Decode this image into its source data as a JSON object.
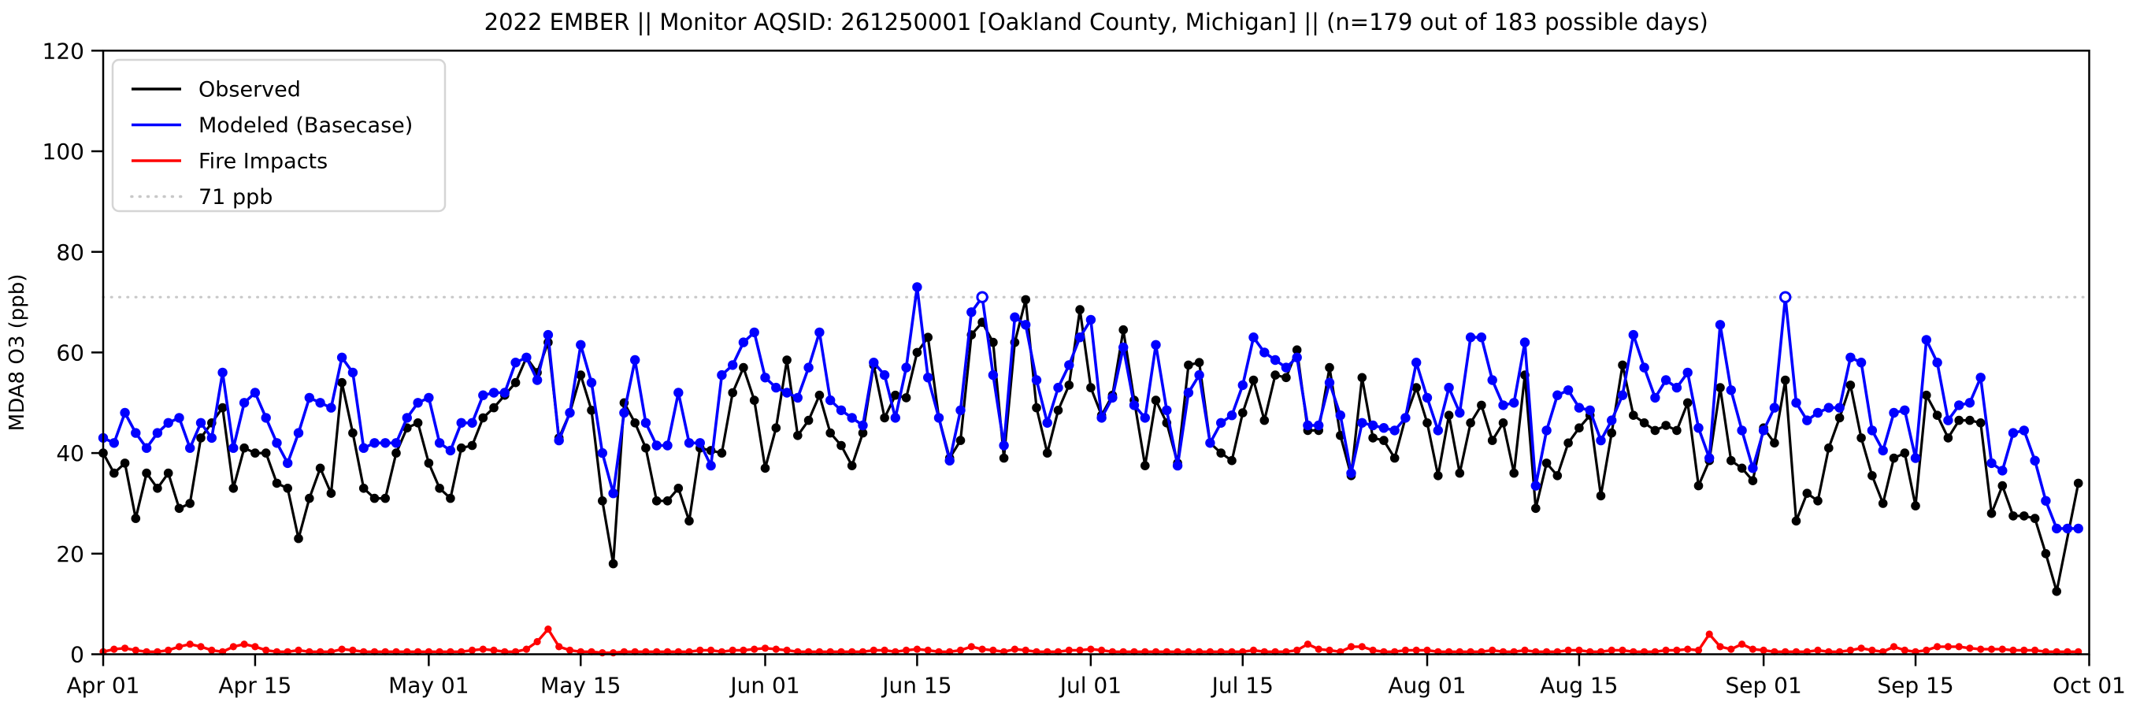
{
  "title": "2022 EMBER || Monitor AQSID: 261250001 [Oakland County, Michigan] || (n=179 out of 183 possible days)",
  "legend": {
    "items": [
      {
        "label": "Observed",
        "color": "#000000",
        "style": "solid"
      },
      {
        "label": "Modeled (Basecase)",
        "color": "#0000ff",
        "style": "solid"
      },
      {
        "label": "Fire Impacts",
        "color": "#ff0000",
        "style": "solid"
      },
      {
        "label": "71 ppb",
        "color": "#c8c8c8",
        "style": "dotted"
      }
    ]
  },
  "chart_data": {
    "type": "line",
    "title": "2022 EMBER || Monitor AQSID: 261250001 [Oakland County, Michigan] || (n=179 out of 183 possible days)",
    "xlabel": "",
    "ylabel": "MDA8 O3 (ppb)",
    "ylim": [
      0,
      120
    ],
    "yticks": [
      0,
      20,
      40,
      60,
      80,
      100,
      120
    ],
    "n_days": 183,
    "start_date": "Apr 01",
    "end_date": "Oct 01",
    "threshold_ppb": 71,
    "threshold_color": "#c8c8c8",
    "grid": false,
    "legend_position": "upper-left",
    "x_ticks": [
      {
        "label": "Apr 01",
        "day": 0
      },
      {
        "label": "Apr 15",
        "day": 14
      },
      {
        "label": "May 01",
        "day": 30
      },
      {
        "label": "May 15",
        "day": 44
      },
      {
        "label": "Jun 01",
        "day": 61
      },
      {
        "label": "Jun 15",
        "day": 75
      },
      {
        "label": "Jul 01",
        "day": 91
      },
      {
        "label": "Jul 15",
        "day": 105
      },
      {
        "label": "Aug 01",
        "day": 122
      },
      {
        "label": "Aug 15",
        "day": 136
      },
      {
        "label": "Sep 01",
        "day": 153
      },
      {
        "label": "Sep 15",
        "day": 167
      },
      {
        "label": "Oct 01",
        "day": 183
      }
    ],
    "series": [
      {
        "name": "Observed",
        "color": "#000000",
        "marker_radius": 5.8,
        "line_width": 3.2,
        "values": [
          40,
          36,
          38,
          27,
          36,
          33,
          36,
          29,
          30,
          43,
          46,
          49,
          33,
          41,
          40,
          40,
          34,
          33,
          23,
          31,
          37,
          32,
          54,
          44,
          33,
          31,
          31,
          40,
          45,
          46,
          38,
          33,
          31,
          41,
          41.5,
          47,
          49,
          51.5,
          54,
          59,
          56,
          62,
          43,
          48,
          55.5,
          48.5,
          30.5,
          18,
          50,
          46,
          41,
          30.5,
          30.5,
          33,
          26.5,
          41,
          40.5,
          40,
          52,
          57,
          50.5,
          37,
          45,
          58.5,
          43.5,
          46.5,
          51.5,
          44,
          41.5,
          37.5,
          44,
          57.5,
          47,
          51.5,
          51,
          60,
          63,
          47,
          39,
          42.5,
          63.5,
          66,
          62,
          39,
          62,
          70.5,
          49,
          40,
          48.5,
          53.5,
          68.5,
          53,
          47.5,
          51.5,
          64.5,
          50.5,
          37.5,
          50.5,
          46,
          38,
          57.5,
          58,
          42,
          40,
          38.5,
          48,
          54.5,
          46.5,
          55.5,
          55,
          60.5,
          44.5,
          44.5,
          57,
          43.5,
          35.5,
          55,
          43,
          42.5,
          39,
          47,
          53,
          46,
          35.5,
          47.5,
          36,
          46,
          49.5,
          42.5,
          46,
          36,
          55.5,
          29,
          38,
          35.5,
          42,
          45,
          47.5,
          31.5,
          44,
          57.5,
          47.5,
          46,
          44.5,
          45.5,
          44.5,
          50,
          33.5,
          38.5,
          53,
          38.5,
          37,
          34.5,
          45,
          42,
          54.5,
          26.5,
          32,
          30.5,
          41,
          47,
          53.5,
          43,
          35.5,
          30,
          39,
          40,
          29.5,
          51.5,
          47.5,
          43,
          46.5,
          46.5,
          46,
          28,
          33.5,
          27.5,
          27.5,
          27,
          20,
          12.5,
          null,
          34
        ]
      },
      {
        "name": "Modeled (Basecase)",
        "color": "#0000ff",
        "marker_radius": 6.2,
        "line_width": 3.6,
        "open_marker_days": [
          81,
          155
        ],
        "values": [
          43,
          42,
          48,
          44,
          41,
          44,
          46,
          47,
          41,
          46,
          43,
          56,
          41,
          50,
          52,
          47,
          42,
          38,
          44,
          51,
          50,
          49,
          59,
          56,
          41,
          42,
          42,
          42,
          47,
          50,
          51,
          42,
          40.5,
          46,
          46,
          51.5,
          52,
          52,
          58,
          59,
          54.5,
          63.5,
          42.5,
          48,
          61.5,
          54,
          40,
          32,
          48,
          58.5,
          46,
          41.5,
          41.5,
          52,
          42,
          42,
          37.5,
          55.5,
          57.5,
          62,
          64,
          55,
          53,
          52,
          51,
          57,
          64,
          50.5,
          48.5,
          47,
          45.5,
          58,
          55.5,
          47,
          57,
          73,
          55,
          47,
          38.5,
          48.5,
          68,
          71,
          55.5,
          41.5,
          67,
          65.5,
          54.5,
          46,
          53,
          57.5,
          63,
          66.5,
          47,
          51,
          61,
          49.5,
          47,
          61.5,
          48.5,
          37.5,
          52,
          55.5,
          42,
          46,
          47.5,
          53.5,
          63,
          60,
          58.5,
          57,
          59,
          45.5,
          45.5,
          54,
          47.5,
          36,
          46,
          45.5,
          45,
          44.5,
          47,
          58,
          51,
          44.5,
          53,
          48,
          63,
          63,
          54.5,
          49.5,
          50,
          62,
          33.5,
          44.5,
          51.5,
          52.5,
          49,
          48.5,
          42.5,
          46.5,
          51.5,
          63.5,
          57,
          51,
          54.5,
          53,
          56,
          45,
          39,
          65.5,
          52.5,
          44.5,
          37,
          44.5,
          49,
          71,
          50,
          46.5,
          48,
          49,
          49,
          59,
          58,
          44.5,
          40.5,
          48,
          48.5,
          39,
          62.5,
          58,
          46.5,
          49.5,
          50,
          55,
          38,
          36.5,
          44,
          44.5,
          38.5,
          30.5,
          25,
          25,
          25
        ]
      },
      {
        "name": "Fire Impacts",
        "color": "#ff0000",
        "marker_radius": 4.6,
        "line_width": 3.4,
        "values": [
          0.5,
          1,
          1.2,
          0.8,
          0.5,
          0.5,
          0.8,
          1.5,
          2,
          1.5,
          0.8,
          0.5,
          1.5,
          2,
          1.5,
          0.8,
          0.5,
          0.5,
          0.8,
          0.5,
          0.5,
          0.5,
          1,
          0.8,
          0.5,
          0.5,
          0.5,
          0.5,
          0.5,
          0.5,
          0.5,
          0.5,
          0.5,
          0.5,
          0.8,
          1,
          0.8,
          0.5,
          0.5,
          1,
          2.5,
          5,
          1.5,
          0.8,
          0.5,
          0.5,
          0.3,
          0.3,
          0.5,
          0.5,
          0.5,
          0.5,
          0.5,
          0.5,
          0.5,
          0.8,
          0.8,
          0.5,
          0.8,
          0.8,
          1,
          1.2,
          1,
          0.8,
          0.5,
          0.5,
          0.5,
          0.5,
          0.5,
          0.5,
          0.5,
          0.8,
          0.8,
          0.5,
          0.8,
          1,
          0.8,
          0.5,
          0.5,
          0.8,
          1.5,
          1,
          0.8,
          0.5,
          1,
          0.8,
          0.5,
          0.5,
          0.5,
          0.8,
          0.8,
          1,
          0.8,
          0.5,
          0.5,
          0.5,
          0.5,
          0.5,
          0.5,
          0.5,
          0.5,
          0.5,
          0.5,
          0.5,
          0.5,
          0.5,
          0.8,
          0.5,
          0.5,
          0.5,
          0.8,
          2,
          1,
          0.8,
          0.5,
          1.5,
          1.5,
          0.8,
          0.5,
          0.5,
          0.8,
          0.8,
          0.8,
          0.5,
          0.5,
          0.5,
          0.5,
          0.5,
          0.8,
          0.5,
          0.5,
          0.8,
          0.5,
          0.5,
          0.5,
          0.8,
          0.8,
          0.5,
          0.5,
          0.8,
          0.8,
          0.5,
          0.5,
          0.5,
          0.8,
          0.8,
          1,
          0.8,
          4,
          1.5,
          1,
          2,
          1,
          0.8,
          0.5,
          0.5,
          0.5,
          0.5,
          0.8,
          0.5,
          0.5,
          0.8,
          1.2,
          0.8,
          0.5,
          1.5,
          0.8,
          0.5,
          0.8,
          1.5,
          1.5,
          1.5,
          1.2,
          1,
          1,
          1,
          0.8,
          0.8,
          0.8,
          0.5,
          0.5,
          0.5,
          0.5
        ]
      }
    ]
  }
}
